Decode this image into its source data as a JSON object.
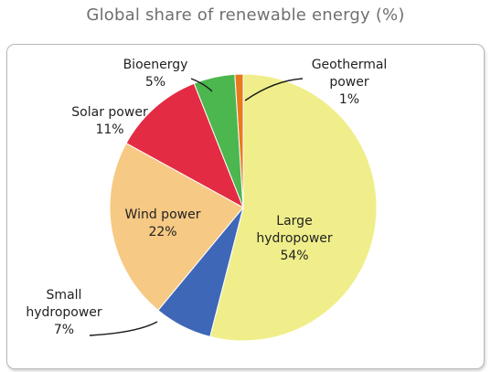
{
  "chart_data": {
    "type": "pie",
    "title": "Global share of renewable energy (%)",
    "start_angle_deg": 0,
    "direction": "clockwise",
    "slices": [
      {
        "label": "Large hydropower",
        "label_lines": [
          "Large",
          "hydropower"
        ],
        "value": 54,
        "value_text": "54%",
        "color": "#f0ee8a"
      },
      {
        "label": "Small hydropower",
        "label_lines": [
          "Small",
          "hydropower"
        ],
        "value": 7,
        "value_text": "7%",
        "color": "#3e67b8"
      },
      {
        "label": "Wind power",
        "label_lines": [
          "Wind power"
        ],
        "value": 22,
        "value_text": "22%",
        "color": "#f6c984"
      },
      {
        "label": "Solar power",
        "label_lines": [
          "Solar power"
        ],
        "value": 11,
        "value_text": "11%",
        "color": "#e42b44"
      },
      {
        "label": "Bioenergy",
        "label_lines": [
          "Bioenergy"
        ],
        "value": 5,
        "value_text": "5%",
        "color": "#4cb64f"
      },
      {
        "label": "Geothermal power",
        "label_lines": [
          "Geothermal",
          "power"
        ],
        "value": 1,
        "value_text": "1%",
        "color": "#e87a1e"
      }
    ]
  }
}
